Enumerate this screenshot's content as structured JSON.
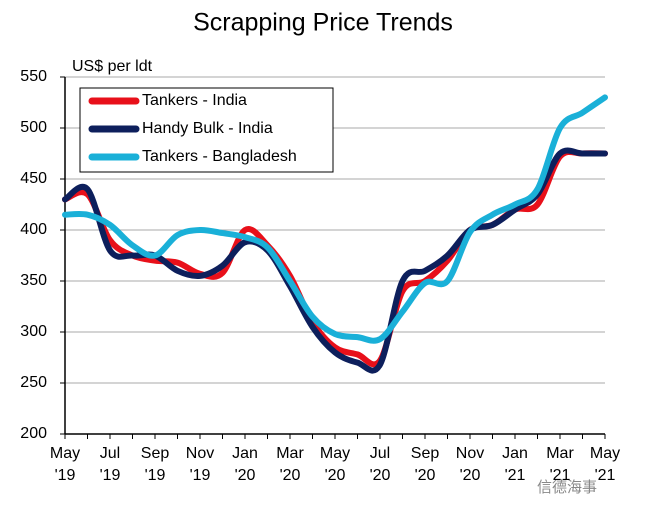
{
  "chart_data": {
    "type": "line",
    "title": "Scrapping Price Trends",
    "y_label": "US$ per ldt",
    "categories": [
      "May '19",
      null,
      "Jul '19",
      null,
      "Sep '19",
      null,
      "Nov '19",
      null,
      "Jan '20",
      null,
      "Mar '20",
      null,
      "May '20",
      null,
      "Jul '20",
      null,
      "Sep '20",
      null,
      "Nov '20",
      null,
      "Jan '21",
      null,
      "Mar '21",
      null,
      "May '21"
    ],
    "series": [
      {
        "name": "Tankers - India",
        "color": "#e8101a",
        "values": [
          430,
          435,
          390,
          375,
          370,
          368,
          357,
          358,
          400,
          385,
          355,
          310,
          285,
          278,
          272,
          340,
          350,
          370,
          400,
          405,
          420,
          425,
          472,
          475,
          475
        ]
      },
      {
        "name": "Handy Bulk - India",
        "color": "#0d1f5c",
        "values": [
          430,
          440,
          380,
          375,
          375,
          360,
          355,
          365,
          388,
          380,
          345,
          305,
          280,
          270,
          268,
          350,
          360,
          375,
          400,
          405,
          420,
          435,
          475,
          475,
          475
        ]
      },
      {
        "name": "Tankers - Bangladesh",
        "color": "#1ab0d8",
        "values": [
          415,
          415,
          405,
          385,
          375,
          395,
          400,
          397,
          393,
          383,
          350,
          315,
          298,
          295,
          293,
          320,
          348,
          350,
          398,
          415,
          425,
          440,
          500,
          515,
          530
        ]
      }
    ],
    "ylim": [
      200,
      550
    ],
    "yticks": [
      200,
      250,
      300,
      350,
      400,
      450,
      500,
      550
    ],
    "grid": true,
    "legend": "top-left",
    "watermark": "信德海事"
  }
}
